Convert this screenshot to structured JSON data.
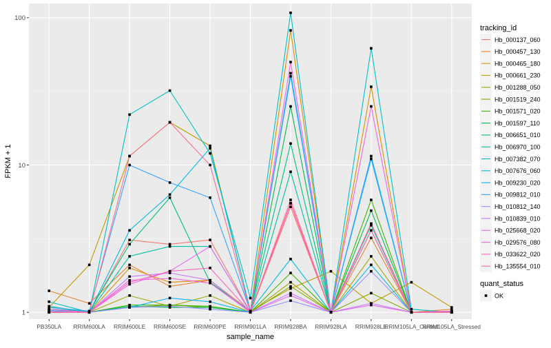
{
  "chart_data": {
    "type": "line",
    "xlabel": "sample_name",
    "ylabel": "FPKM + 1",
    "y_scale": "log10",
    "ylim": [
      0.9,
      125
    ],
    "y_ticks": [
      1,
      10,
      100
    ],
    "grid": true,
    "legend_position": "right",
    "categories": [
      "PB350LA",
      "RRIM600LA",
      "RRIM600LE",
      "RRIM600SE",
      "RRIM600PE",
      "RRIM901LA",
      "RRIM928BA",
      "RRIM928LA",
      "RRIM928LE",
      "RRIM105LA_Control",
      "RRIM105LA_Stressed"
    ],
    "legend_title": "tracking_id",
    "series": [
      {
        "name": "Hb_000137_060",
        "color": "#F8766D",
        "values": [
          1.02,
          1.0,
          3.1,
          2.9,
          3.1,
          1.0,
          5.2,
          1.0,
          4.0,
          1.0,
          1.02
        ]
      },
      {
        "name": "Hb_000457_130",
        "color": "#EA8331",
        "values": [
          1.4,
          1.15,
          2.1,
          1.5,
          1.65,
          1.0,
          5.5,
          1.0,
          3.2,
          1.0,
          1.05
        ]
      },
      {
        "name": "Hb_000465_180",
        "color": "#D89000",
        "values": [
          1.05,
          1.0,
          2.0,
          1.6,
          1.65,
          1.02,
          82,
          1.0,
          34,
          1.0,
          1.01
        ]
      },
      {
        "name": "Hb_000661_230",
        "color": "#C09B00",
        "values": [
          1.08,
          2.1,
          11.5,
          19.5,
          13.5,
          1.02,
          1.45,
          1.9,
          1.15,
          1.6,
          1.08
        ]
      },
      {
        "name": "Hb_001288_050",
        "color": "#A3A500",
        "values": [
          1.0,
          1.0,
          1.3,
          1.1,
          1.3,
          1.0,
          1.6,
          1.0,
          2.4,
          1.0,
          1.0
        ]
      },
      {
        "name": "Hb_001519_240",
        "color": "#7CAE00",
        "values": [
          1.0,
          1.0,
          1.08,
          1.12,
          1.08,
          1.0,
          1.5,
          1.0,
          1.35,
          1.0,
          1.0
        ]
      },
      {
        "name": "Hb_001571_020",
        "color": "#39B600",
        "values": [
          1.02,
          1.0,
          1.12,
          1.12,
          1.1,
          1.0,
          1.85,
          1.0,
          5.8,
          1.0,
          1.0
        ]
      },
      {
        "name": "Hb_001597_110",
        "color": "#00BB4E",
        "values": [
          1.0,
          1.0,
          1.1,
          1.08,
          1.08,
          1.0,
          25,
          1.0,
          4.9,
          1.0,
          1.0
        ]
      },
      {
        "name": "Hb_006651_010",
        "color": "#00BF7D",
        "values": [
          1.05,
          1.02,
          2.9,
          6.0,
          1.6,
          1.02,
          14,
          1.0,
          3.6,
          1.0,
          1.02
        ]
      },
      {
        "name": "Hb_006970_100",
        "color": "#00C1A3",
        "values": [
          1.1,
          1.0,
          2.4,
          2.8,
          2.8,
          1.0,
          9.0,
          1.0,
          3.9,
          1.0,
          1.0
        ]
      },
      {
        "name": "Hb_007382_070",
        "color": "#00BFC4",
        "values": [
          1.18,
          1.0,
          22,
          32,
          12,
          1.25,
          108,
          1.0,
          62,
          1.05,
          1.0
        ]
      },
      {
        "name": "Hb_007676_060",
        "color": "#00BAE0",
        "values": [
          1.05,
          1.0,
          3.6,
          6.3,
          13,
          1.02,
          2.3,
          1.0,
          2.1,
          1.0,
          1.0
        ]
      },
      {
        "name": "Hb_009230_020",
        "color": "#00B0F6",
        "values": [
          1.03,
          1.0,
          1.08,
          1.25,
          1.18,
          1.0,
          42,
          1.0,
          11,
          1.0,
          1.0
        ]
      },
      {
        "name": "Hb_009812_010",
        "color": "#35A2FF",
        "values": [
          1.08,
          1.02,
          10.0,
          7.6,
          6.0,
          1.02,
          40,
          1.0,
          11.5,
          1.0,
          1.0
        ]
      },
      {
        "name": "Hb_010812_140",
        "color": "#9590FF",
        "values": [
          1.0,
          1.0,
          1.08,
          1.1,
          1.05,
          1.0,
          1.2,
          1.0,
          1.9,
          1.0,
          1.0
        ]
      },
      {
        "name": "Hb_010839_010",
        "color": "#C77CFF",
        "values": [
          1.02,
          1.0,
          1.75,
          1.85,
          1.65,
          1.0,
          1.35,
          1.0,
          1.15,
          1.0,
          1.0
        ]
      },
      {
        "name": "Hb_025668_020",
        "color": "#E76BF3",
        "values": [
          1.0,
          1.0,
          1.55,
          1.9,
          2.8,
          1.0,
          1.3,
          1.0,
          1.12,
          1.0,
          1.0
        ]
      },
      {
        "name": "Hb_029576_080",
        "color": "#FA62DB",
        "values": [
          1.05,
          1.0,
          1.65,
          1.7,
          1.58,
          1.0,
          50,
          1.0,
          25,
          1.0,
          1.02
        ]
      },
      {
        "name": "Hb_033622_020",
        "color": "#FF62BC",
        "values": [
          1.0,
          1.0,
          1.6,
          1.9,
          2.0,
          1.0,
          5.5,
          1.0,
          3.6,
          1.0,
          1.0
        ]
      },
      {
        "name": "Hb_135554_010",
        "color": "#FF6C91",
        "values": [
          1.0,
          1.0,
          11.5,
          19.5,
          10.0,
          1.0,
          5.8,
          1.0,
          4.0,
          1.0,
          1.0
        ]
      }
    ],
    "shape_legend_title": "quant_status",
    "shape_legend_items": [
      "OK"
    ]
  }
}
